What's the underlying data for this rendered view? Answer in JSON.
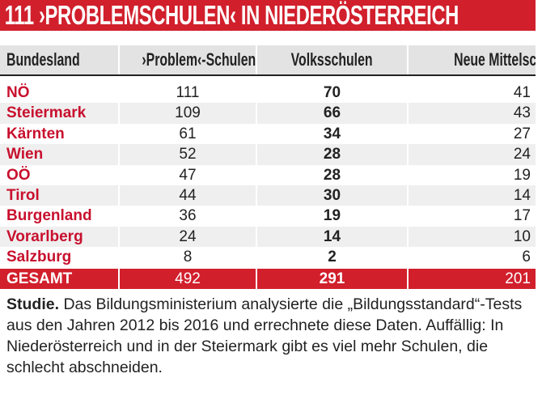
{
  "header": {
    "title": "111 ›PROBLEMSCHULEN‹ IN NIEDERÖSTERREICH"
  },
  "table": {
    "columns": [
      "Bundesland",
      "›Problem‹-Schulen",
      "Volksschulen",
      "Neue Mittelschulen"
    ],
    "rows": [
      [
        "NÖ",
        111,
        70,
        41
      ],
      [
        "Steiermark",
        109,
        66,
        43
      ],
      [
        "Kärnten",
        61,
        34,
        27
      ],
      [
        "Wien",
        52,
        28,
        24
      ],
      [
        "OÖ",
        47,
        28,
        19
      ],
      [
        "Tirol",
        44,
        30,
        14
      ],
      [
        "Burgenland",
        36,
        19,
        17
      ],
      [
        "Vorarlberg",
        24,
        14,
        10
      ],
      [
        "Salzburg",
        8,
        2,
        6
      ]
    ],
    "total": [
      "GESAMT",
      492,
      291,
      201
    ]
  },
  "caption": {
    "lead": "Studie.",
    "text": "Das Bildungsministerium analysierte die „Bildungsstandard“-Tests aus den Jahren 2012 bis 2016 und errechnete diese Daten. Auffällig: In Niederösterreich und in der Steiermark gibt es viel mehr Schulen, die schlecht abschneiden."
  }
}
